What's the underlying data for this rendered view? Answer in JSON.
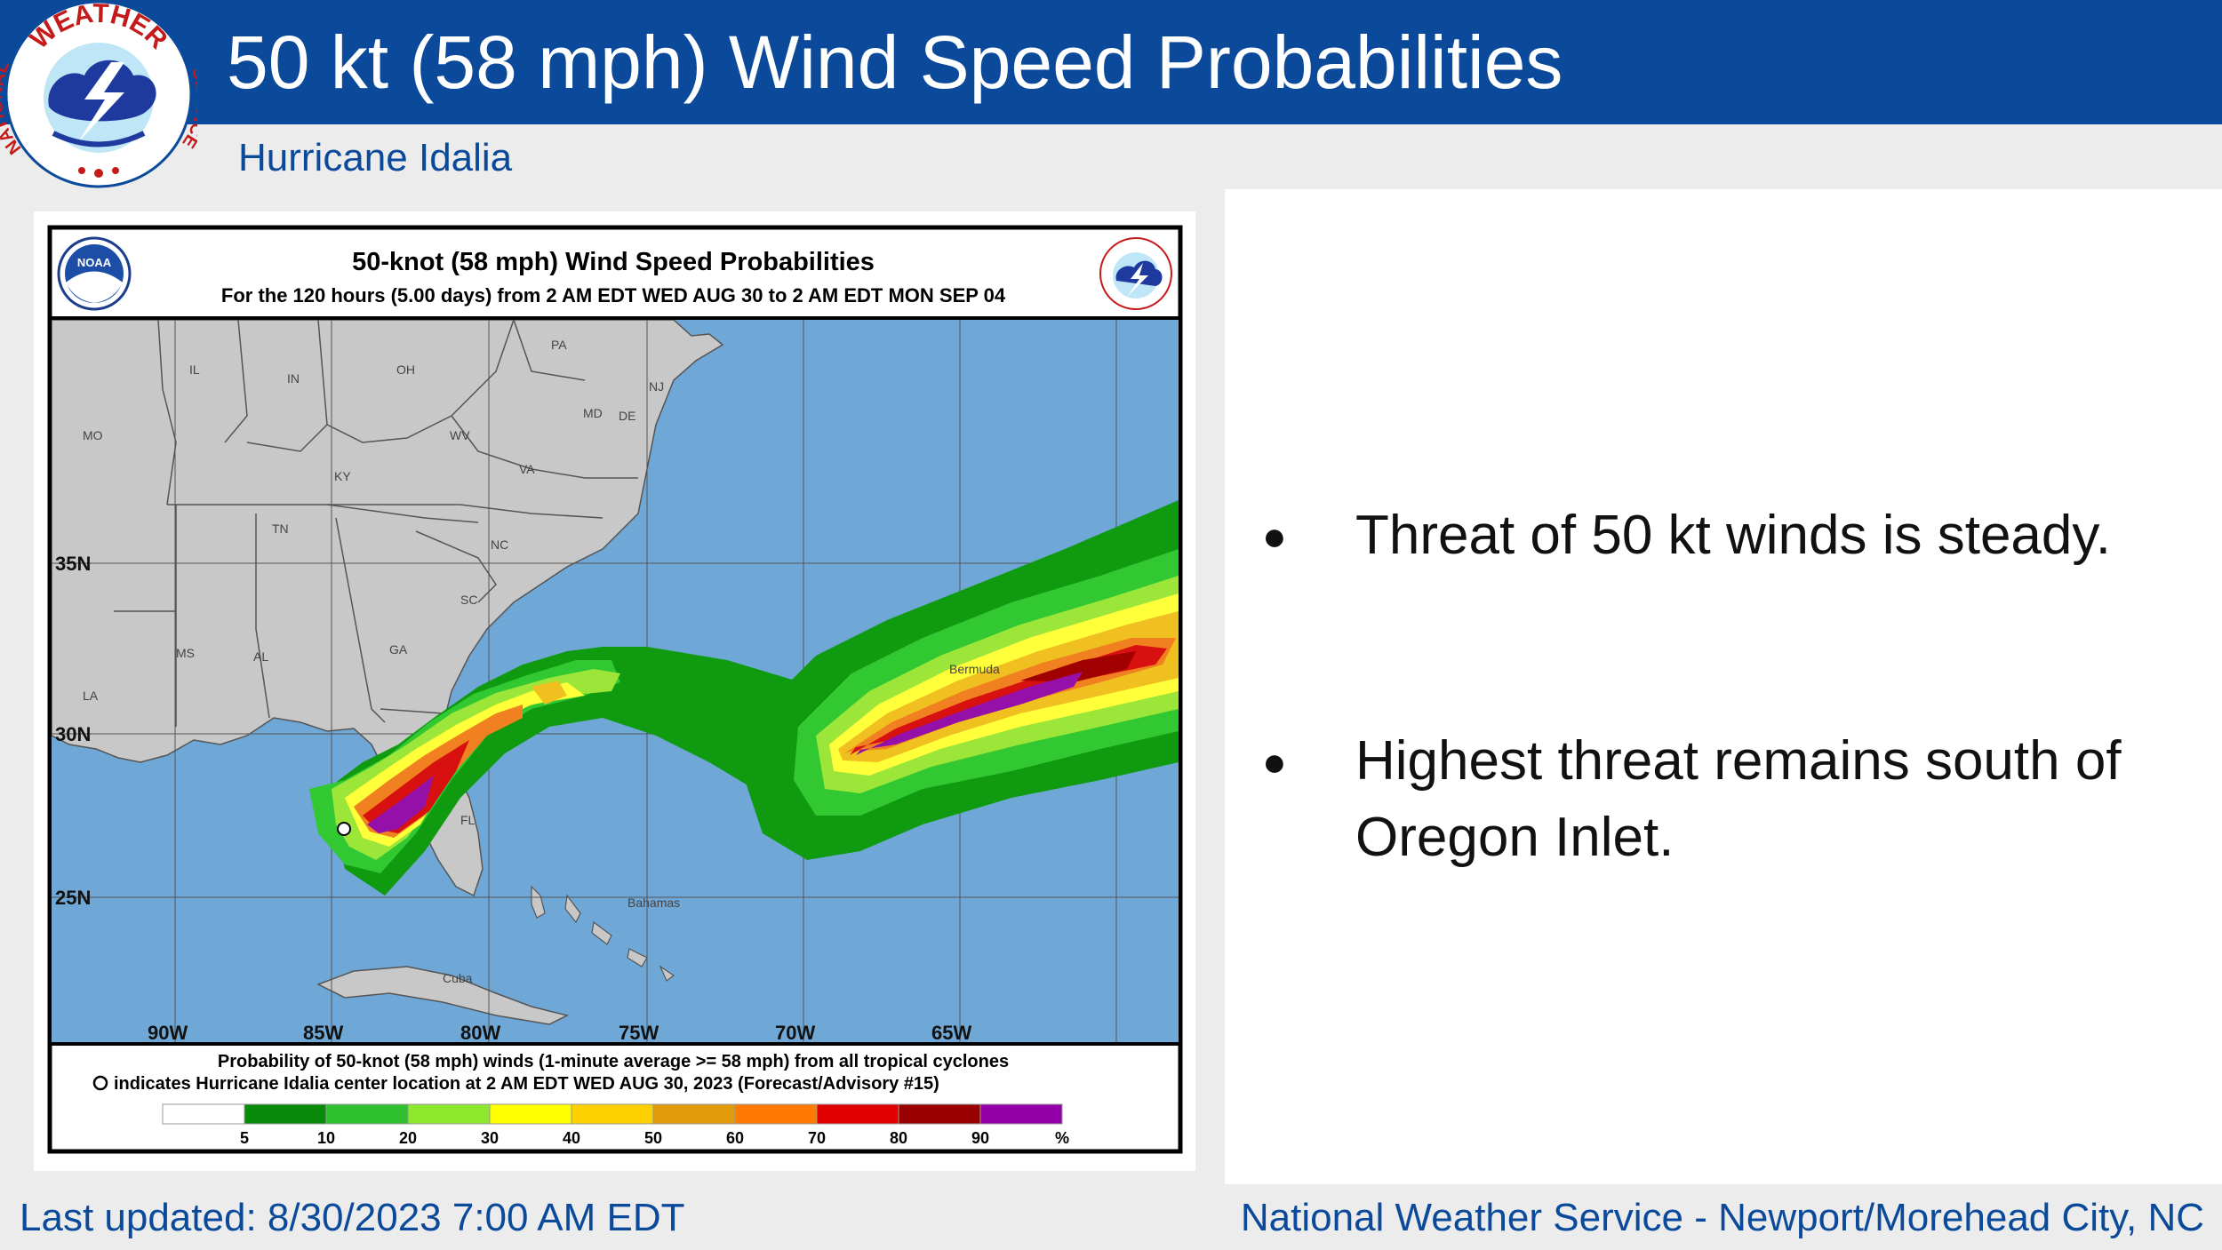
{
  "header": {
    "title": "50 kt (58 mph) Wind Speed Probabilities",
    "subtitle": "Hurricane Idalia",
    "logo_text_top": "WEATHER",
    "logo_text_left": "NATIONAL",
    "logo_text_right": "SERVICE"
  },
  "map": {
    "title": "50-knot (58 mph) Wind Speed Probabilities",
    "subtitle": "For the 120 hours (5.00 days) from 2 AM EDT WED AUG 30 to 2 AM EDT MON SEP 04",
    "noaa_logo": "NOAA",
    "states": [
      "IL",
      "IN",
      "OH",
      "PA",
      "NJ",
      "MD",
      "DE",
      "WV",
      "VA",
      "MO",
      "KY",
      "TN",
      "NC",
      "SC",
      "GA",
      "MS",
      "AL",
      "LA",
      "FL"
    ],
    "places": [
      "Bahamas",
      "Cuba",
      "Bermuda"
    ],
    "lat_labels": [
      "35N",
      "30N",
      "25N"
    ],
    "lon_labels": [
      "90W",
      "85W",
      "80W",
      "75W",
      "70W",
      "65W"
    ],
    "caption_line1": "Probability of 50-knot (58 mph) winds (1-minute average >= 58 mph) from all tropical cyclones",
    "caption_line2": "indicates Hurricane Idalia center location at 2 AM EDT WED AUG 30, 2023 (Forecast/Advisory #15)",
    "legend": {
      "labels": [
        "5",
        "10",
        "20",
        "30",
        "40",
        "50",
        "60",
        "70",
        "80",
        "90",
        "%"
      ],
      "colors": [
        "#ffffff",
        "#0a8a0a",
        "#2ec02e",
        "#8ee82e",
        "#ffff00",
        "#ffd000",
        "#e09a0a",
        "#ff7a00",
        "#e00000",
        "#990000",
        "#9400a8"
      ]
    },
    "colors": {
      "ocean": "#6fa8d6",
      "land": "#c8c8c8",
      "green_dark": "#0f9a0f",
      "green": "#32c832",
      "green_light": "#9ce63a",
      "yellow": "#ffff3a",
      "gold": "#f0c020",
      "orange": "#f08020",
      "red": "#d81010",
      "dark_red": "#a00000",
      "purple": "#9410a8"
    }
  },
  "bullets": [
    "Threat of 50 kt winds is steady.",
    "Highest threat remains south of Oregon Inlet."
  ],
  "footer": {
    "updated": "Last updated: 8/30/2023 7:00 AM EDT",
    "office": "National Weather Service - Newport/Morehead City, NC"
  }
}
